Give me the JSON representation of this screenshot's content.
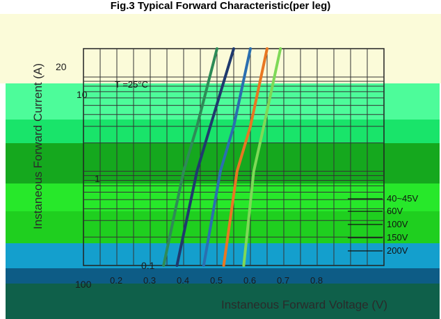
{
  "chart_data": {
    "type": "line",
    "title": "Fig.3  Typical Forward Characteristic(per leg)",
    "xlabel": "Instaneous Forward Voltage (V)",
    "ylabel": "Instaneous Forward Current (A)",
    "y_scale": "log",
    "xlim": [
      0.1,
      1.0
    ],
    "ylim": [
      0.1,
      20
    ],
    "grid": true,
    "legend_position": "bottom-right",
    "annotation": "T =25°C",
    "x_ticks": [
      "0.2",
      "0.3",
      "0.4",
      "0.5",
      "0.6",
      "0.7",
      "0.8"
    ],
    "y_ticks": [
      "20",
      "10",
      "1",
      "0.1"
    ],
    "series": [
      {
        "name": "40~45V",
        "x": [
          0.34,
          0.4,
          0.44,
          0.5
        ],
        "y": [
          0.1,
          1,
          3,
          20
        ],
        "color": "#2e8b57"
      },
      {
        "name": "60V",
        "x": [
          0.38,
          0.44,
          0.48,
          0.55
        ],
        "y": [
          0.1,
          1,
          3,
          20
        ],
        "color": "#1f3a6e"
      },
      {
        "name": "100V",
        "x": [
          0.46,
          0.51,
          0.55,
          0.6
        ],
        "y": [
          0.1,
          1,
          3,
          20
        ],
        "color": "#2a6fb0"
      },
      {
        "name": "150V",
        "x": [
          0.52,
          0.56,
          0.6,
          0.65
        ],
        "y": [
          0.1,
          1,
          3,
          20
        ],
        "color": "#e87722"
      },
      {
        "name": "200V",
        "x": [
          0.58,
          0.61,
          0.64,
          0.69
        ],
        "y": [
          0.1,
          1,
          3,
          20
        ],
        "color": "#7ed957"
      }
    ]
  },
  "page": {
    "title": "Fig.3  Typical Forward Characteristic(per leg)",
    "extra_label": "100"
  }
}
